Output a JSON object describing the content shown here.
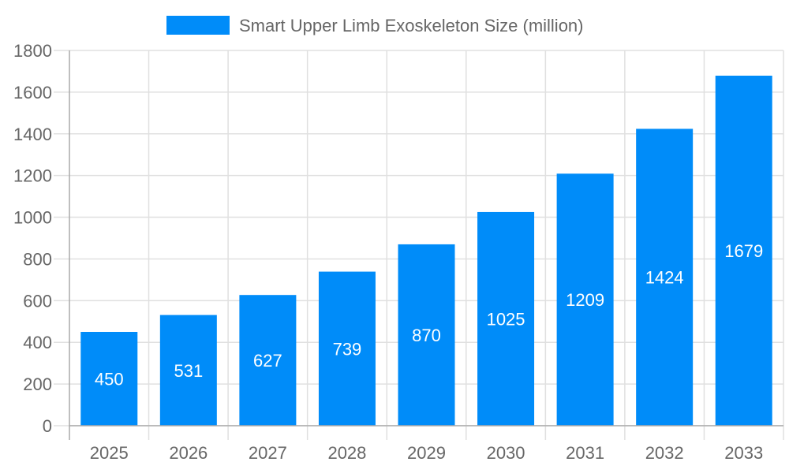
{
  "chart_data": {
    "type": "bar",
    "title": "",
    "xlabel": "",
    "ylabel": "",
    "categories": [
      "2025",
      "2026",
      "2027",
      "2028",
      "2029",
      "2030",
      "2031",
      "2032",
      "2033"
    ],
    "series": [
      {
        "name": "Smart Upper Limb Exoskeleton Size (million)",
        "values": [
          450,
          531,
          627,
          739,
          870,
          1025,
          1209,
          1424,
          1679
        ],
        "color": "#008cf9"
      }
    ],
    "ylim": [
      0,
      1800
    ],
    "yticks": [
      0,
      200,
      400,
      600,
      800,
      1000,
      1200,
      1400,
      1600,
      1800
    ],
    "grid": true,
    "legend": "top",
    "data_labels": true
  }
}
